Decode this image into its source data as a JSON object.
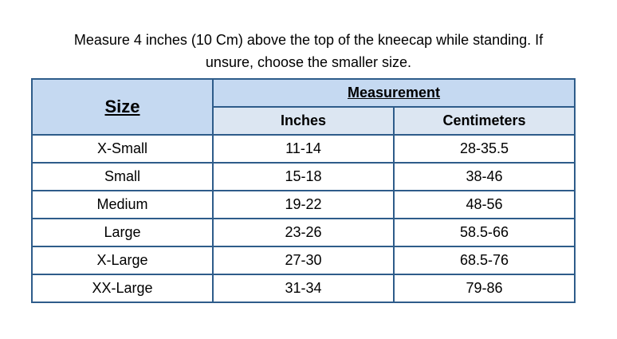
{
  "caption": {
    "lines": [
      "Measure 4 inches (10 Cm) above the top of the kneecap while standing. If",
      "unsure, choose the smaller size."
    ]
  },
  "table": {
    "header": {
      "size": "Size",
      "group": "Measurement",
      "columns": [
        "Inches",
        "Centimeters"
      ]
    },
    "rows": [
      [
        "X-Small",
        "11-14",
        "28-35.5"
      ],
      [
        "Small",
        "15-18",
        "38-46"
      ],
      [
        "Medium",
        "19-22",
        "48-56"
      ],
      [
        "Large",
        "23-26",
        "58.5-66"
      ],
      [
        "X-Large",
        "27-30",
        "68.5-76"
      ],
      [
        "XX-Large",
        "31-34",
        "79-86"
      ]
    ]
  }
}
